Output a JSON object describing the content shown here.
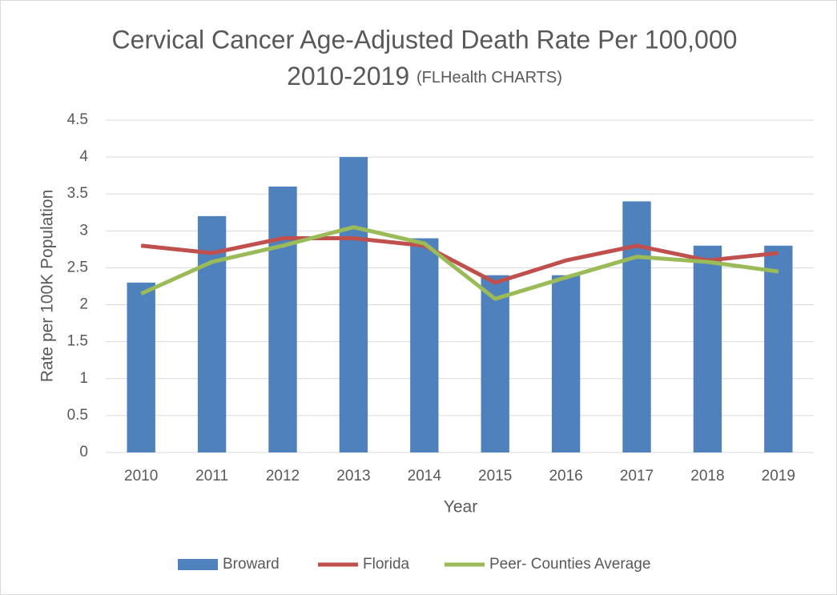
{
  "chart_data": {
    "type": "bar_line",
    "title": "Cervical Cancer Age-Adjusted Death Rate Per 100,000",
    "title_line2": "2010-2019",
    "subtitle": "(FLHealth CHARTS)",
    "x_label": "Year",
    "y_label": "Rate per 100K Population",
    "categories": [
      "2010",
      "2011",
      "2012",
      "2013",
      "2014",
      "2015",
      "2016",
      "2017",
      "2018",
      "2019"
    ],
    "series": [
      {
        "name": "Broward",
        "type": "bar",
        "color": "#4f81bd",
        "values": [
          2.3,
          3.2,
          3.6,
          4.0,
          2.9,
          2.4,
          2.4,
          3.4,
          2.8,
          2.8
        ]
      },
      {
        "name": "Florida",
        "type": "line",
        "color": "#c0504d",
        "values": [
          2.8,
          2.7,
          2.9,
          2.9,
          2.8,
          2.3,
          2.6,
          2.8,
          2.6,
          2.7
        ]
      },
      {
        "name": "Peer- Counties Average",
        "type": "line",
        "color": "#9bbb59",
        "values": [
          2.15,
          2.58,
          2.8,
          3.05,
          2.83,
          2.08,
          2.37,
          2.65,
          2.58,
          2.45
        ]
      }
    ],
    "ylim": [
      0,
      4.5
    ],
    "yticks": [
      0,
      0.5,
      1,
      1.5,
      2,
      2.5,
      3,
      3.5,
      4,
      4.5
    ],
    "grid": true,
    "legend": "bottom"
  }
}
